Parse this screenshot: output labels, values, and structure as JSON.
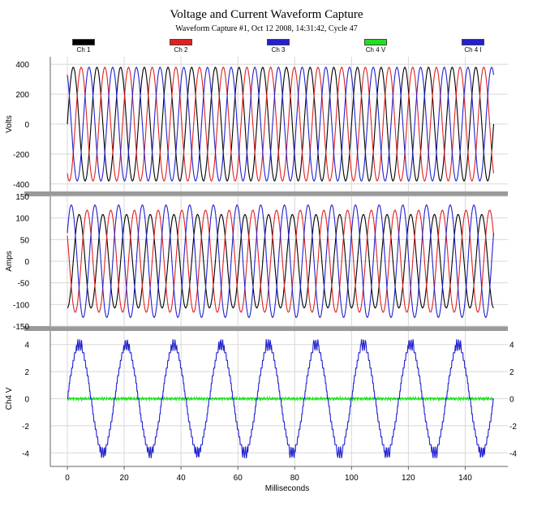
{
  "title": "Voltage and Current Waveform Capture",
  "subtitle": "Waveform Capture #1, Oct 12 2008, 14:31:42, Cycle 47",
  "legend": [
    {
      "label": "Ch 1",
      "color": "#000000"
    },
    {
      "label": "Ch 2",
      "color": "#e02020"
    },
    {
      "label": "Ch 3",
      "color": "#2020d0"
    },
    {
      "label": "Ch 4 V",
      "color": "#20e020"
    },
    {
      "label": "Ch 4 I",
      "color": "#2020d0"
    }
  ],
  "chart_data": [
    {
      "type": "line",
      "ylabel": "Volts",
      "ylim": [
        -450,
        450
      ],
      "yticks": [
        400,
        200,
        0,
        -200,
        -400
      ],
      "xlim": [
        -6,
        155
      ],
      "series": [
        {
          "name": "Ch 1",
          "color": "#000000",
          "amplitude": 380,
          "frequency_hz": 120,
          "phase_deg": 0,
          "x_start": 0,
          "x_end": 150
        },
        {
          "name": "Ch 2",
          "color": "#e02020",
          "amplitude": 380,
          "frequency_hz": 120,
          "phase_deg": -120,
          "x_start": 0,
          "x_end": 150
        },
        {
          "name": "Ch 3",
          "color": "#2020d0",
          "amplitude": 380,
          "frequency_hz": 120,
          "phase_deg": 120,
          "x_start": 0,
          "x_end": 150
        }
      ]
    },
    {
      "type": "line",
      "ylabel": "Amps",
      "ylim": [
        -150,
        150
      ],
      "yticks": [
        150,
        100,
        50,
        0,
        -50,
        -100,
        -150
      ],
      "xlim": [
        -6,
        155
      ],
      "series": [
        {
          "name": "Ch 1",
          "color": "#000000",
          "amplitude": 108,
          "frequency_hz": 120,
          "phase_deg": 270,
          "x_start": 0,
          "x_end": 150
        },
        {
          "name": "Ch 2",
          "color": "#e02020",
          "amplitude": 118,
          "frequency_hz": 120,
          "phase_deg": 150,
          "x_start": 0,
          "x_end": 150
        },
        {
          "name": "Ch 3",
          "color": "#2020d0",
          "amplitude": 130,
          "frequency_hz": 120,
          "phase_deg": 30,
          "x_start": 0,
          "x_end": 150
        }
      ]
    },
    {
      "type": "line",
      "ylabel": "Ch4 V",
      "xlabel": "Milliseconds",
      "ylim": [
        -5,
        5
      ],
      "yticks": [
        4,
        2,
        0,
        -2,
        -4
      ],
      "xlim": [
        -6,
        155
      ],
      "xticks": [
        0,
        20,
        40,
        60,
        80,
        100,
        120,
        140
      ],
      "right_ytick_labels": [
        "4",
        "2",
        "0",
        "-2",
        "-4"
      ],
      "series": [
        {
          "name": "Ch 4 V",
          "color": "#20e020",
          "amplitude": 0.15,
          "frequency_hz": 0,
          "x_start": 0,
          "x_end": 150
        },
        {
          "name": "Ch 4 I",
          "color": "#2020d0",
          "amplitude": 3.6,
          "frequency_hz": 60,
          "phase_deg": 0,
          "x_start": 0,
          "x_end": 150
        }
      ]
    }
  ]
}
